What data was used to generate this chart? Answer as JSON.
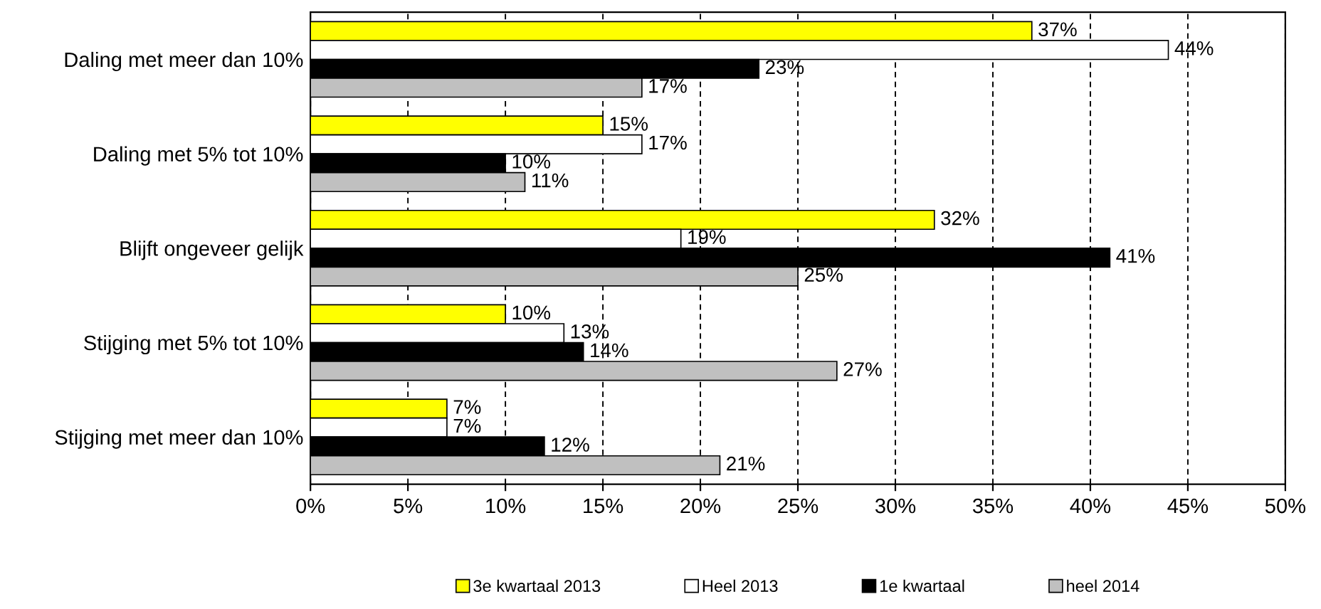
{
  "chart_data": {
    "type": "bar",
    "orientation": "horizontal",
    "categories": [
      "Daling met meer dan 10%",
      "Daling met 5% tot 10%",
      "Blijft ongeveer gelijk",
      "Stijging met 5% tot 10%",
      "Stijging met meer dan 10%"
    ],
    "series": [
      {
        "name": "3e kwartaal 2013",
        "color": "#ffff00",
        "values": [
          37,
          15,
          32,
          10,
          7
        ],
        "value_labels": [
          "37%",
          "15%",
          "32%",
          "10%",
          "7%"
        ]
      },
      {
        "name": "Heel 2013",
        "color": "#ffffff",
        "values": [
          44,
          17,
          19,
          13,
          7
        ],
        "value_labels": [
          "44%",
          "17%",
          "19%",
          "13%",
          "7%"
        ]
      },
      {
        "name": "1e kwartaal",
        "color": "#000000",
        "values": [
          23,
          10,
          41,
          14,
          12
        ],
        "value_labels": [
          "23%",
          "10%",
          "41%",
          "14%",
          "12%"
        ]
      },
      {
        "name": "heel 2014",
        "color": "#c0c0c0",
        "values": [
          17,
          11,
          25,
          27,
          21
        ],
        "value_labels": [
          "17%",
          "11%",
          "25%",
          "27%",
          "21%"
        ]
      }
    ],
    "xlim": [
      0,
      50
    ],
    "xticks": [
      {
        "value": 0,
        "label": "0%"
      },
      {
        "value": 5,
        "label": "5%"
      },
      {
        "value": 10,
        "label": "10%"
      },
      {
        "value": 15,
        "label": "15%"
      },
      {
        "value": 20,
        "label": "20%"
      },
      {
        "value": 25,
        "label": "25%"
      },
      {
        "value": 30,
        "label": "30%"
      },
      {
        "value": 35,
        "label": "35%"
      },
      {
        "value": 40,
        "label": "40%"
      },
      {
        "value": 45,
        "label": "45%"
      },
      {
        "value": 50,
        "label": "50%"
      }
    ],
    "grid": "x",
    "legend": "bottom"
  }
}
